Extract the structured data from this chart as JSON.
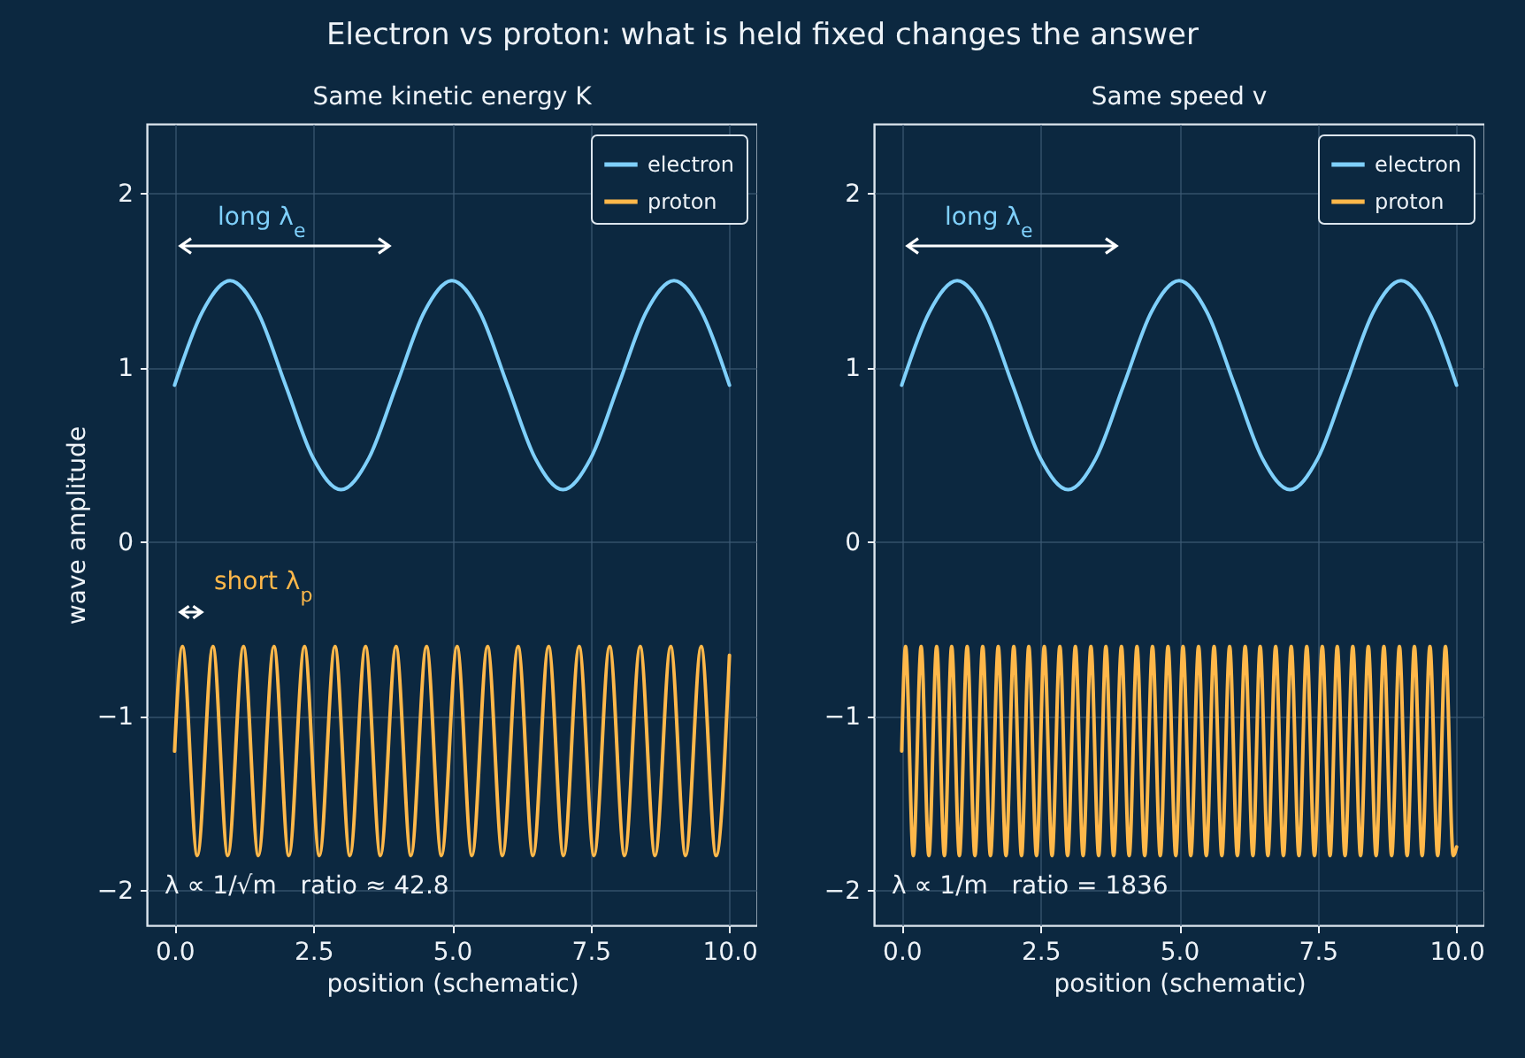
{
  "chart_data": [
    {
      "type": "line",
      "title": "Electron vs proton: what is held fixed changes the answer",
      "subtitle": "Same kinetic energy K",
      "xlabel": "position (schematic)",
      "ylabel": "wave amplitude",
      "xlim": [
        -0.5,
        10.5
      ],
      "ylim": [
        -2.2,
        2.4
      ],
      "xticks": [
        {
          "value": 0,
          "label": "0.0"
        },
        {
          "value": 2.5,
          "label": "2.5"
        },
        {
          "value": 5,
          "label": "5.0"
        },
        {
          "value": 7.5,
          "label": "7.5"
        },
        {
          "value": 10,
          "label": "10.0"
        }
      ],
      "yticks": [
        -2,
        -1,
        0,
        1,
        2
      ],
      "grid": true,
      "legend": "top right",
      "series": [
        {
          "name": "electron",
          "color": "#7fd0fb",
          "x": [
            0,
            0.5,
            1,
            1.5,
            2,
            2.5,
            3,
            3.5,
            4,
            4.5,
            5,
            5.5,
            6,
            6.5,
            7,
            7.5,
            8,
            8.5,
            9,
            9.5,
            10
          ],
          "values": [
            0.9,
            1.32,
            1.5,
            1.32,
            0.9,
            0.48,
            0.3,
            0.48,
            0.9,
            1.32,
            1.5,
            1.32,
            0.9,
            0.48,
            0.3,
            0.48,
            0.9,
            1.32,
            1.5,
            1.32,
            0.9
          ]
        },
        {
          "name": "proton",
          "color": "#ffb84a",
          "x": [
            0,
            0.14,
            0.41,
            0.69,
            0.96,
            1.24,
            1.51,
            1.79,
            2.06,
            2.34,
            2.61,
            2.89,
            3.16,
            3.44,
            3.71,
            3.99,
            4.26,
            4.54,
            4.81,
            5.09,
            5.36,
            5.64,
            5.91,
            6.19,
            6.46,
            6.74,
            7.01,
            7.29,
            7.56,
            7.84,
            8.11,
            8.39,
            8.66,
            8.94,
            9.21,
            9.49,
            9.76,
            10
          ],
          "values": [
            -1.2,
            -0.6,
            -1.8,
            -0.6,
            -1.8,
            -0.6,
            -1.8,
            -0.6,
            -1.8,
            -0.6,
            -1.8,
            -0.6,
            -1.8,
            -0.6,
            -1.8,
            -0.6,
            -1.8,
            -0.6,
            -1.8,
            -0.6,
            -1.8,
            -0.6,
            -1.8,
            -0.6,
            -1.8,
            -0.6,
            -1.8,
            -0.6,
            -1.8,
            -0.6,
            -1.8,
            -0.6,
            -1.8,
            -0.6,
            -1.8,
            -0.6,
            -1.8,
            -0.65
          ]
        }
      ],
      "annotations": [
        "long λ$_{e}$",
        "short λ$_{p}$",
        "λ ∝ 1/√m   ratio ≈ 42.8"
      ]
    },
    {
      "type": "line",
      "title": "Same speed v",
      "xlabel": "position (schematic)",
      "xlim": [
        -0.5,
        10.5
      ],
      "ylim": [
        -2.2,
        2.4
      ],
      "xticks": [
        {
          "value": 0,
          "label": "0.0"
        },
        {
          "value": 2.5,
          "label": "2.5"
        },
        {
          "value": 5,
          "label": "5.0"
        },
        {
          "value": 7.5,
          "label": "7.5"
        },
        {
          "value": 10,
          "label": "10.0"
        }
      ],
      "yticks": [
        -2,
        -1,
        0,
        1,
        2
      ],
      "grid": true,
      "legend": "top right",
      "series": [
        {
          "name": "electron",
          "color": "#7fd0fb",
          "x": [
            0,
            0.5,
            1,
            1.5,
            2,
            2.5,
            3,
            3.5,
            4,
            4.5,
            5,
            5.5,
            6,
            6.5,
            7,
            7.5,
            8,
            8.5,
            9,
            9.5,
            10
          ],
          "values": [
            0.9,
            1.32,
            1.5,
            1.32,
            0.9,
            0.48,
            0.3,
            0.48,
            0.9,
            1.32,
            1.5,
            1.32,
            0.9,
            0.48,
            0.3,
            0.48,
            0.9,
            1.32,
            1.5,
            1.32,
            0.9
          ]
        },
        {
          "name": "proton",
          "color": "#ffb84a",
          "x": [
            0,
            0.07,
            0.21,
            0.35,
            0.49,
            0.63,
            0.77,
            0.9,
            1.04,
            1.18,
            1.32,
            1.46,
            1.6,
            1.74,
            1.88,
            2.02,
            2.16,
            2.29,
            2.43,
            2.57,
            2.71,
            2.85,
            2.99,
            3.13,
            3.27,
            3.41,
            3.55,
            3.68,
            3.82,
            3.96,
            4.1,
            4.24,
            4.38,
            4.52,
            4.66,
            4.8,
            4.94,
            5.07,
            5.21,
            5.35,
            5.49,
            5.63,
            5.77,
            5.91,
            6.05,
            6.19,
            6.33,
            6.46,
            6.6,
            6.74,
            6.88,
            7.02,
            7.16,
            7.3,
            7.44,
            7.58,
            7.72,
            7.85,
            7.99,
            8.13,
            8.27,
            8.41,
            8.55,
            8.69,
            8.83,
            8.97,
            9.11,
            9.24,
            9.38,
            9.52,
            9.66,
            9.8,
            9.94,
            10
          ],
          "values": [
            -1.2,
            -0.6,
            -1.8,
            -0.6,
            -1.8,
            -0.6,
            -1.8,
            -0.6,
            -1.8,
            -0.6,
            -1.8,
            -0.6,
            -1.8,
            -0.6,
            -1.8,
            -0.6,
            -1.8,
            -0.6,
            -1.8,
            -0.6,
            -1.8,
            -0.6,
            -1.8,
            -0.6,
            -1.8,
            -0.6,
            -1.8,
            -0.6,
            -1.8,
            -0.6,
            -1.8,
            -0.6,
            -1.8,
            -0.6,
            -1.8,
            -0.6,
            -1.8,
            -0.6,
            -1.8,
            -0.6,
            -1.8,
            -0.6,
            -1.8,
            -0.6,
            -1.8,
            -0.6,
            -1.8,
            -0.6,
            -1.8,
            -0.6,
            -1.8,
            -0.6,
            -1.8,
            -0.6,
            -1.8,
            -0.6,
            -1.8,
            -0.6,
            -1.8,
            -0.6,
            -1.8,
            -0.6,
            -1.8,
            -0.6,
            -1.8,
            -0.6,
            -1.8,
            -0.6,
            -1.8,
            -0.6,
            -1.8,
            -0.6,
            -1.8,
            -1.75
          ]
        }
      ],
      "annotations": [
        "long λ$_{e}$",
        "λ ∝ 1/m   ratio = 1836"
      ]
    }
  ]
}
